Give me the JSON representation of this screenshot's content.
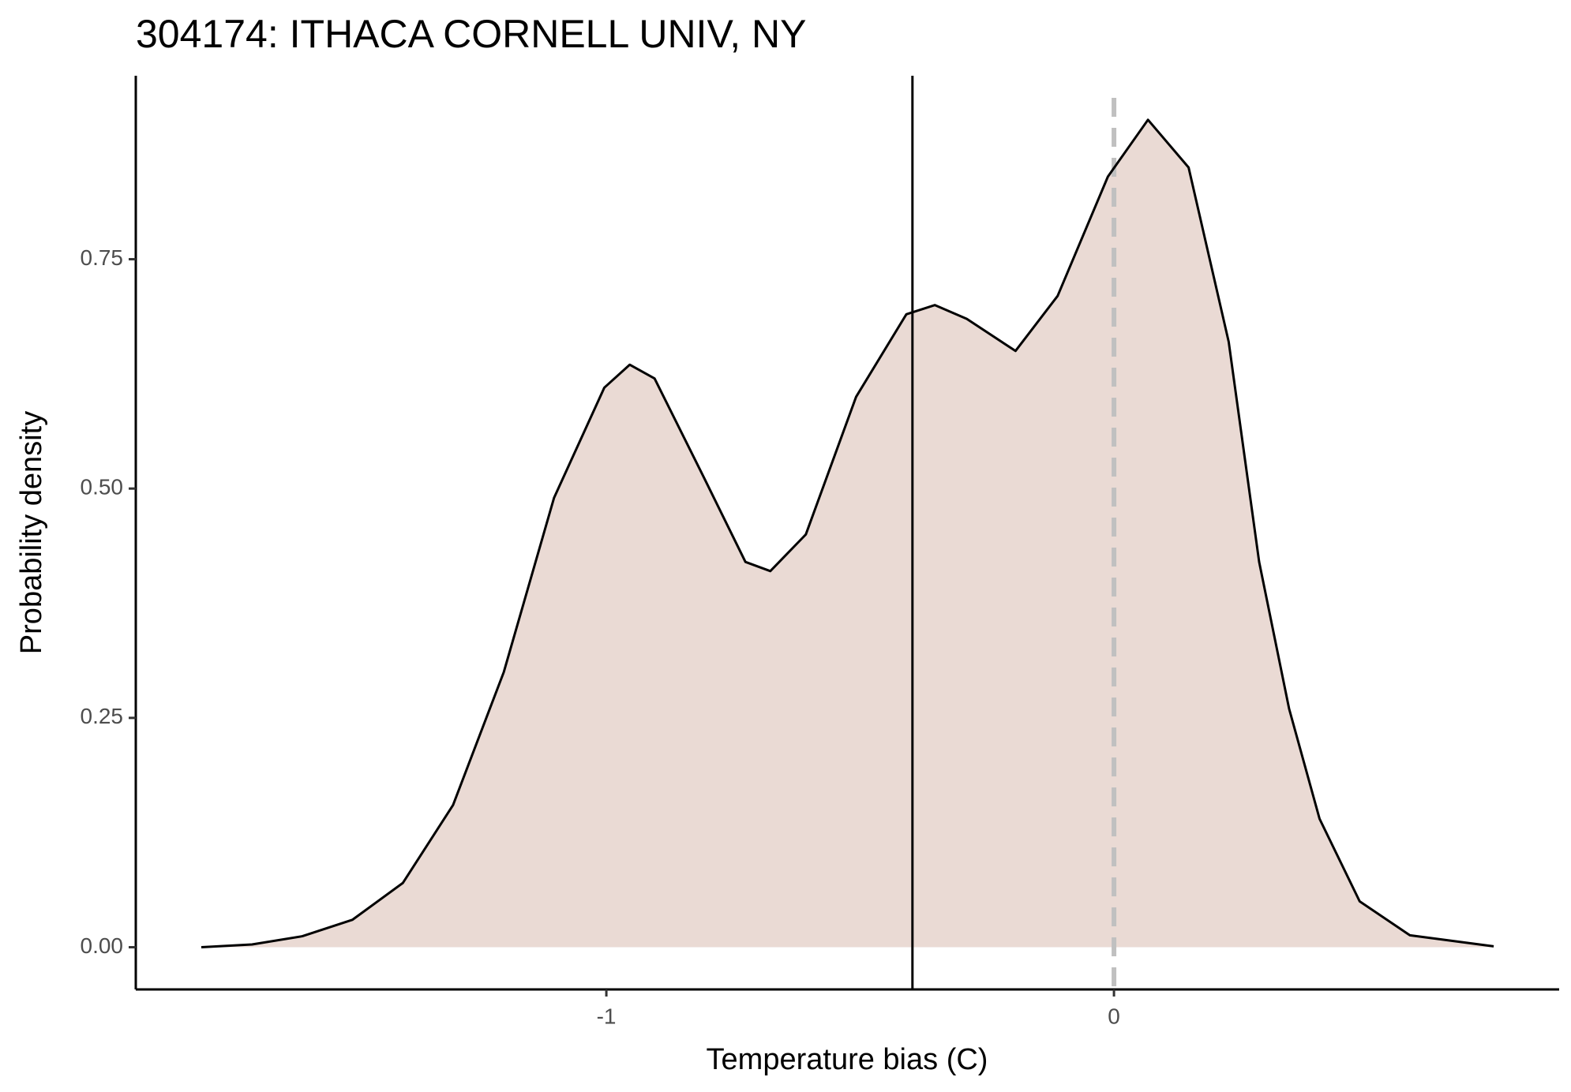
{
  "chart_data": {
    "type": "density",
    "title": "304174: ITHACA CORNELL UNIV, NY",
    "x_label": "Temperature bias (C)",
    "y_label": "Probability density",
    "x": [
      -1.798,
      -1.698,
      -1.599,
      -1.5,
      -1.401,
      -1.302,
      -1.202,
      -1.103,
      -1.004,
      -0.954,
      -0.905,
      -0.806,
      -0.726,
      -0.677,
      -0.607,
      -0.508,
      -0.409,
      -0.353,
      -0.29,
      -0.194,
      -0.111,
      -0.012,
      0.067,
      0.147,
      0.226,
      0.286,
      0.345,
      0.405,
      0.484,
      0.583,
      0.748
    ],
    "values": [
      0,
      0.003,
      0.012,
      0.03,
      0.07,
      0.155,
      0.3,
      0.49,
      0.61,
      0.635,
      0.62,
      0.51,
      0.42,
      0.41,
      0.45,
      0.6,
      0.69,
      0.7,
      0.685,
      0.65,
      0.71,
      0.84,
      0.902,
      0.85,
      0.66,
      0.42,
      0.26,
      0.14,
      0.05,
      0.013,
      0.001
    ],
    "fill_color": "#eadad4",
    "line_color": "#000000",
    "vlines": [
      {
        "value": -0.397,
        "color": "#000000",
        "dashed": false
      },
      {
        "value": 0,
        "color": "#c0c0c0",
        "dashed": true
      }
    ],
    "xlim": [
      -1.927,
      0.877
    ],
    "ylim": [
      -0.046,
      0.95
    ],
    "xticks": [
      -1,
      0
    ],
    "yticks": [
      {
        "value": 0,
        "label": "0.00"
      },
      {
        "value": 0.25,
        "label": "0.25"
      },
      {
        "value": 0.5,
        "label": "0.50"
      },
      {
        "value": 0.75,
        "label": "0.75"
      }
    ],
    "grid": false
  }
}
